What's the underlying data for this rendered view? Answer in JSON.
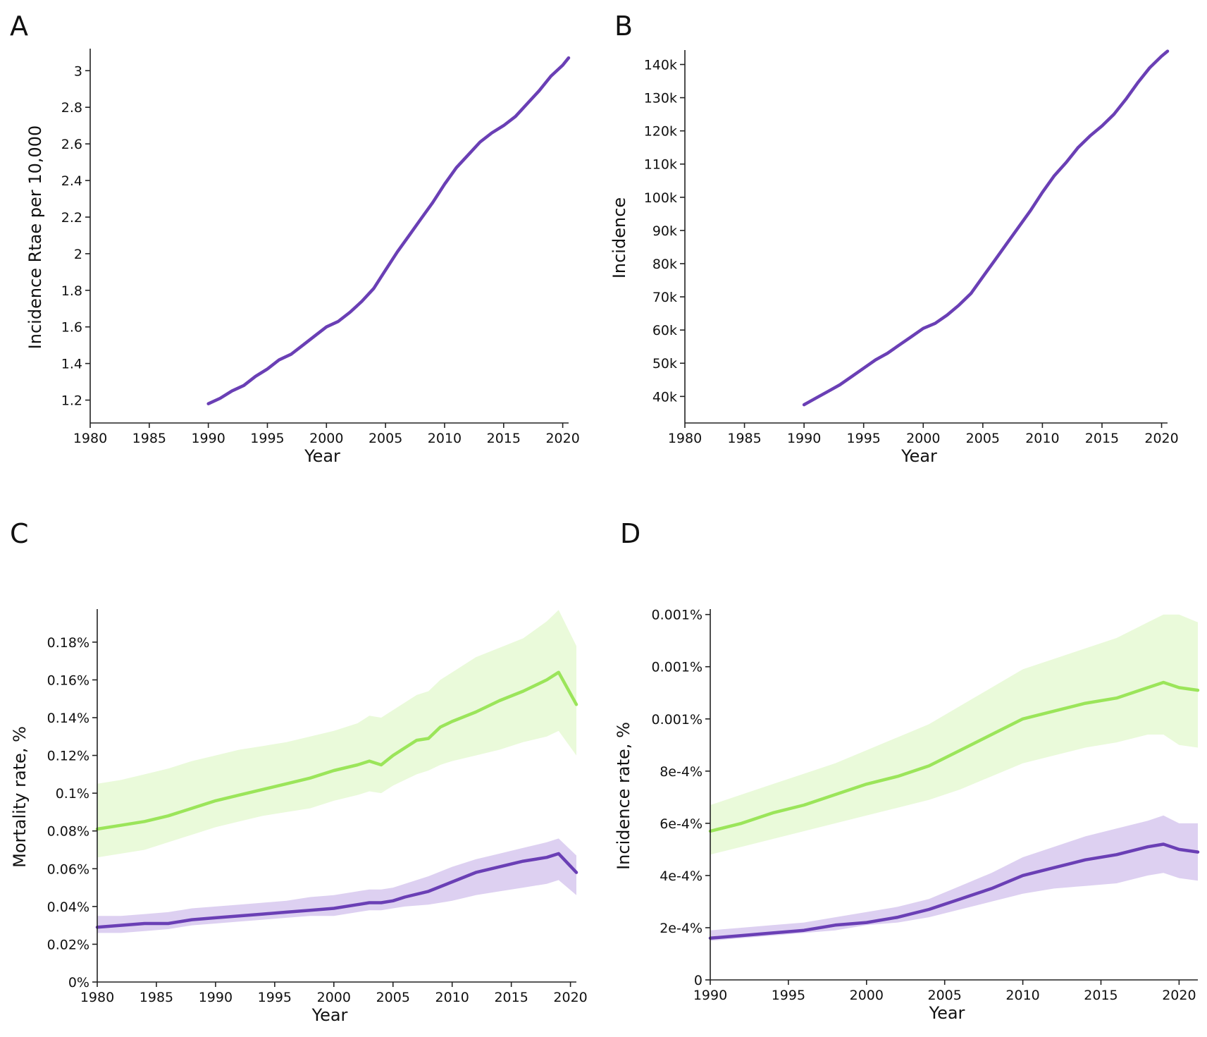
{
  "colors": {
    "purple": "#6a3fb5",
    "green": "#9be55a",
    "purple_band": "#d7c8ee",
    "green_band": "#e6f9d4",
    "axis": "#222222"
  },
  "chart_data": [
    {
      "panel": "A",
      "type": "line",
      "xlabel": "Year",
      "ylabel": "Incidence Rtae per 10,000",
      "xlim": [
        1980,
        2020.5
      ],
      "ylim": [
        1.075,
        3.105
      ],
      "x_ticks": [
        1980,
        1985,
        1990,
        1995,
        2000,
        2005,
        2010,
        2015,
        2020
      ],
      "x_tick_labels": [
        "1980",
        "1985",
        "1990",
        "1995",
        "2000",
        "2005",
        "2010",
        "2015",
        "2020"
      ],
      "y_ticks": [
        1.2,
        1.4,
        1.6,
        1.8,
        2.0,
        2.2,
        2.4,
        2.6,
        2.8,
        3.0
      ],
      "y_tick_labels": [
        "1.2",
        "1.4",
        "1.6",
        "1.8",
        "2",
        "2.2",
        "2.4",
        "2.6",
        "2.8",
        "3"
      ],
      "series": [
        {
          "name": "incidence rate",
          "color": "purple",
          "x": [
            1990,
            1991,
            1992,
            1993,
            1994,
            1995,
            1996,
            1997,
            1998,
            1999,
            2000,
            2001,
            2002,
            2003,
            2004,
            2005,
            2006,
            2007,
            2008,
            2009,
            2010,
            2011,
            2012,
            2013,
            2014,
            2015,
            2016,
            2017,
            2018,
            2019,
            2020,
            2020.5
          ],
          "y": [
            1.18,
            1.21,
            1.25,
            1.28,
            1.33,
            1.37,
            1.42,
            1.45,
            1.5,
            1.55,
            1.6,
            1.63,
            1.68,
            1.74,
            1.81,
            1.91,
            2.01,
            2.1,
            2.19,
            2.28,
            2.38,
            2.47,
            2.54,
            2.61,
            2.66,
            2.7,
            2.75,
            2.82,
            2.89,
            2.97,
            3.03,
            3.07
          ]
        }
      ]
    },
    {
      "panel": "B",
      "type": "line",
      "xlabel": "Year",
      "ylabel": "Incidence",
      "xlim": [
        1980,
        2020.5
      ],
      "ylim": [
        32000,
        143500
      ],
      "x_ticks": [
        1980,
        1985,
        1990,
        1995,
        2000,
        2005,
        2010,
        2015,
        2020
      ],
      "x_tick_labels": [
        "1980",
        "1985",
        "1990",
        "1995",
        "2000",
        "2005",
        "2010",
        "2015",
        "2020"
      ],
      "y_ticks": [
        40000,
        50000,
        60000,
        70000,
        80000,
        90000,
        100000,
        110000,
        120000,
        130000,
        140000
      ],
      "y_tick_labels": [
        "40k",
        "50k",
        "60k",
        "70k",
        "80k",
        "90k",
        "100k",
        "110k",
        "120k",
        "130k",
        "140k"
      ],
      "series": [
        {
          "name": "incidence",
          "color": "purple",
          "x": [
            1990,
            1991,
            1992,
            1993,
            1994,
            1995,
            1996,
            1997,
            1998,
            1999,
            2000,
            2001,
            2002,
            2003,
            2004,
            2005,
            2006,
            2007,
            2008,
            2009,
            2010,
            2011,
            2012,
            2013,
            2014,
            2015,
            2016,
            2017,
            2018,
            2019,
            2020,
            2020.5
          ],
          "y": [
            37500,
            39500,
            41500,
            43500,
            46000,
            48500,
            51000,
            53000,
            55500,
            58000,
            60500,
            62000,
            64500,
            67500,
            71000,
            76000,
            81000,
            86000,
            91000,
            96000,
            101500,
            106500,
            110500,
            115000,
            118500,
            121500,
            125000,
            129500,
            134500,
            139000,
            142500,
            144000
          ]
        }
      ]
    },
    {
      "panel": "C",
      "type": "area",
      "xlabel": "Year",
      "ylabel": "Mortality rate, %",
      "xlim": [
        1980,
        2020.5
      ],
      "ylim": [
        0,
        0.196
      ],
      "x_ticks": [
        1980,
        1985,
        1990,
        1995,
        2000,
        2005,
        2010,
        2015,
        2020
      ],
      "x_tick_labels": [
        "1980",
        "1985",
        "1990",
        "1995",
        "2000",
        "2005",
        "2010",
        "2015",
        "2020"
      ],
      "y_ticks": [
        0,
        0.02,
        0.04,
        0.06,
        0.08,
        0.1,
        0.12,
        0.14,
        0.16,
        0.18
      ],
      "y_tick_labels": [
        "0%",
        "0.02%",
        "0.04%",
        "0.06%",
        "0.08%",
        "0.1%",
        "0.12%",
        "0.14%",
        "0.16%",
        "0.18%"
      ],
      "series": [
        {
          "name": "green series",
          "color": "green",
          "band_color": "green_band",
          "x": [
            1980,
            1982,
            1984,
            1986,
            1988,
            1990,
            1992,
            1994,
            1996,
            1998,
            2000,
            2002,
            2003,
            2004,
            2005,
            2006,
            2007,
            2008,
            2009,
            2010,
            2012,
            2014,
            2016,
            2018,
            2019,
            2020.5
          ],
          "y": [
            0.081,
            0.083,
            0.085,
            0.088,
            0.092,
            0.096,
            0.099,
            0.102,
            0.105,
            0.108,
            0.112,
            0.115,
            0.117,
            0.115,
            0.12,
            0.124,
            0.128,
            0.129,
            0.135,
            0.138,
            0.143,
            0.149,
            0.154,
            0.16,
            0.164,
            0.147
          ],
          "lower": [
            0.066,
            0.068,
            0.07,
            0.074,
            0.078,
            0.082,
            0.085,
            0.088,
            0.09,
            0.092,
            0.096,
            0.099,
            0.101,
            0.1,
            0.104,
            0.107,
            0.11,
            0.112,
            0.115,
            0.117,
            0.12,
            0.123,
            0.127,
            0.13,
            0.133,
            0.12
          ],
          "upper": [
            0.105,
            0.107,
            0.11,
            0.113,
            0.117,
            0.12,
            0.123,
            0.125,
            0.127,
            0.13,
            0.133,
            0.137,
            0.141,
            0.14,
            0.144,
            0.148,
            0.152,
            0.154,
            0.16,
            0.164,
            0.172,
            0.177,
            0.182,
            0.191,
            0.197,
            0.178
          ]
        },
        {
          "name": "purple series",
          "color": "purple",
          "band_color": "purple_band",
          "x": [
            1980,
            1982,
            1984,
            1986,
            1988,
            1990,
            1992,
            1994,
            1996,
            1998,
            2000,
            2002,
            2003,
            2004,
            2005,
            2006,
            2008,
            2010,
            2012,
            2014,
            2016,
            2018,
            2019,
            2020.5
          ],
          "y": [
            0.029,
            0.03,
            0.031,
            0.031,
            0.033,
            0.034,
            0.035,
            0.036,
            0.037,
            0.038,
            0.039,
            0.041,
            0.042,
            0.042,
            0.043,
            0.045,
            0.048,
            0.053,
            0.058,
            0.061,
            0.064,
            0.066,
            0.068,
            0.058
          ],
          "lower": [
            0.026,
            0.026,
            0.027,
            0.028,
            0.03,
            0.031,
            0.032,
            0.033,
            0.034,
            0.035,
            0.035,
            0.037,
            0.038,
            0.038,
            0.039,
            0.04,
            0.041,
            0.043,
            0.046,
            0.048,
            0.05,
            0.052,
            0.054,
            0.046
          ],
          "upper": [
            0.035,
            0.035,
            0.036,
            0.037,
            0.039,
            0.04,
            0.041,
            0.042,
            0.043,
            0.045,
            0.046,
            0.048,
            0.049,
            0.049,
            0.05,
            0.052,
            0.056,
            0.061,
            0.065,
            0.068,
            0.071,
            0.074,
            0.076,
            0.067
          ]
        }
      ]
    },
    {
      "panel": "D",
      "type": "area",
      "xlabel": "Year",
      "ylabel": "Incidence rate, %",
      "xlim": [
        1990,
        2021.2
      ],
      "ylim": [
        0,
        0.00141
      ],
      "x_ticks": [
        1990,
        1995,
        2000,
        2005,
        2010,
        2015,
        2020
      ],
      "x_tick_labels": [
        "1990",
        "1995",
        "2000",
        "2005",
        "2010",
        "2015",
        "2020"
      ],
      "y_ticks": [
        0,
        0.0002,
        0.0004,
        0.0006,
        0.0008,
        0.001,
        0.0012,
        0.0014
      ],
      "y_tick_labels": [
        "0",
        "2e-4%",
        "4e-4%",
        "6e-4%",
        "8e-4%",
        "0.001%",
        "0.001%",
        "0.001%"
      ],
      "series": [
        {
          "name": "green series",
          "color": "green",
          "band_color": "green_band",
          "x": [
            1990,
            1992,
            1994,
            1996,
            1998,
            2000,
            2002,
            2004,
            2006,
            2008,
            2010,
            2012,
            2014,
            2016,
            2018,
            2019,
            2020,
            2021.2
          ],
          "y": [
            0.00057,
            0.0006,
            0.00064,
            0.00067,
            0.00071,
            0.00075,
            0.00078,
            0.00082,
            0.00088,
            0.00094,
            0.001,
            0.00103,
            0.00106,
            0.00108,
            0.00112,
            0.00114,
            0.00112,
            0.00111
          ],
          "lower": [
            0.00048,
            0.00051,
            0.00054,
            0.00057,
            0.0006,
            0.00063,
            0.00066,
            0.00069,
            0.00073,
            0.00078,
            0.00083,
            0.00086,
            0.00089,
            0.00091,
            0.00094,
            0.00094,
            0.0009,
            0.00089
          ],
          "upper": [
            0.00067,
            0.00071,
            0.00075,
            0.00079,
            0.00083,
            0.00088,
            0.00093,
            0.00098,
            0.00105,
            0.00112,
            0.00119,
            0.00123,
            0.00127,
            0.00131,
            0.00137,
            0.0014,
            0.0014,
            0.00137
          ]
        },
        {
          "name": "purple series",
          "color": "purple",
          "band_color": "purple_band",
          "x": [
            1990,
            1992,
            1994,
            1996,
            1998,
            2000,
            2002,
            2004,
            2006,
            2008,
            2010,
            2012,
            2014,
            2016,
            2018,
            2019,
            2020,
            2021.2
          ],
          "y": [
            0.00016,
            0.00017,
            0.00018,
            0.00019,
            0.00021,
            0.00022,
            0.00024,
            0.00027,
            0.00031,
            0.00035,
            0.0004,
            0.00043,
            0.00046,
            0.00048,
            0.00051,
            0.00052,
            0.0005,
            0.00049
          ],
          "lower": [
            0.00015,
            0.00016,
            0.00017,
            0.00018,
            0.00019,
            0.00021,
            0.00022,
            0.00024,
            0.00027,
            0.0003,
            0.00033,
            0.00035,
            0.00036,
            0.00037,
            0.0004,
            0.00041,
            0.00039,
            0.00038
          ],
          "upper": [
            0.00019,
            0.0002,
            0.00021,
            0.00022,
            0.00024,
            0.00026,
            0.00028,
            0.00031,
            0.00036,
            0.00041,
            0.00047,
            0.00051,
            0.00055,
            0.00058,
            0.00061,
            0.00063,
            0.0006,
            0.0006
          ]
        }
      ]
    }
  ]
}
